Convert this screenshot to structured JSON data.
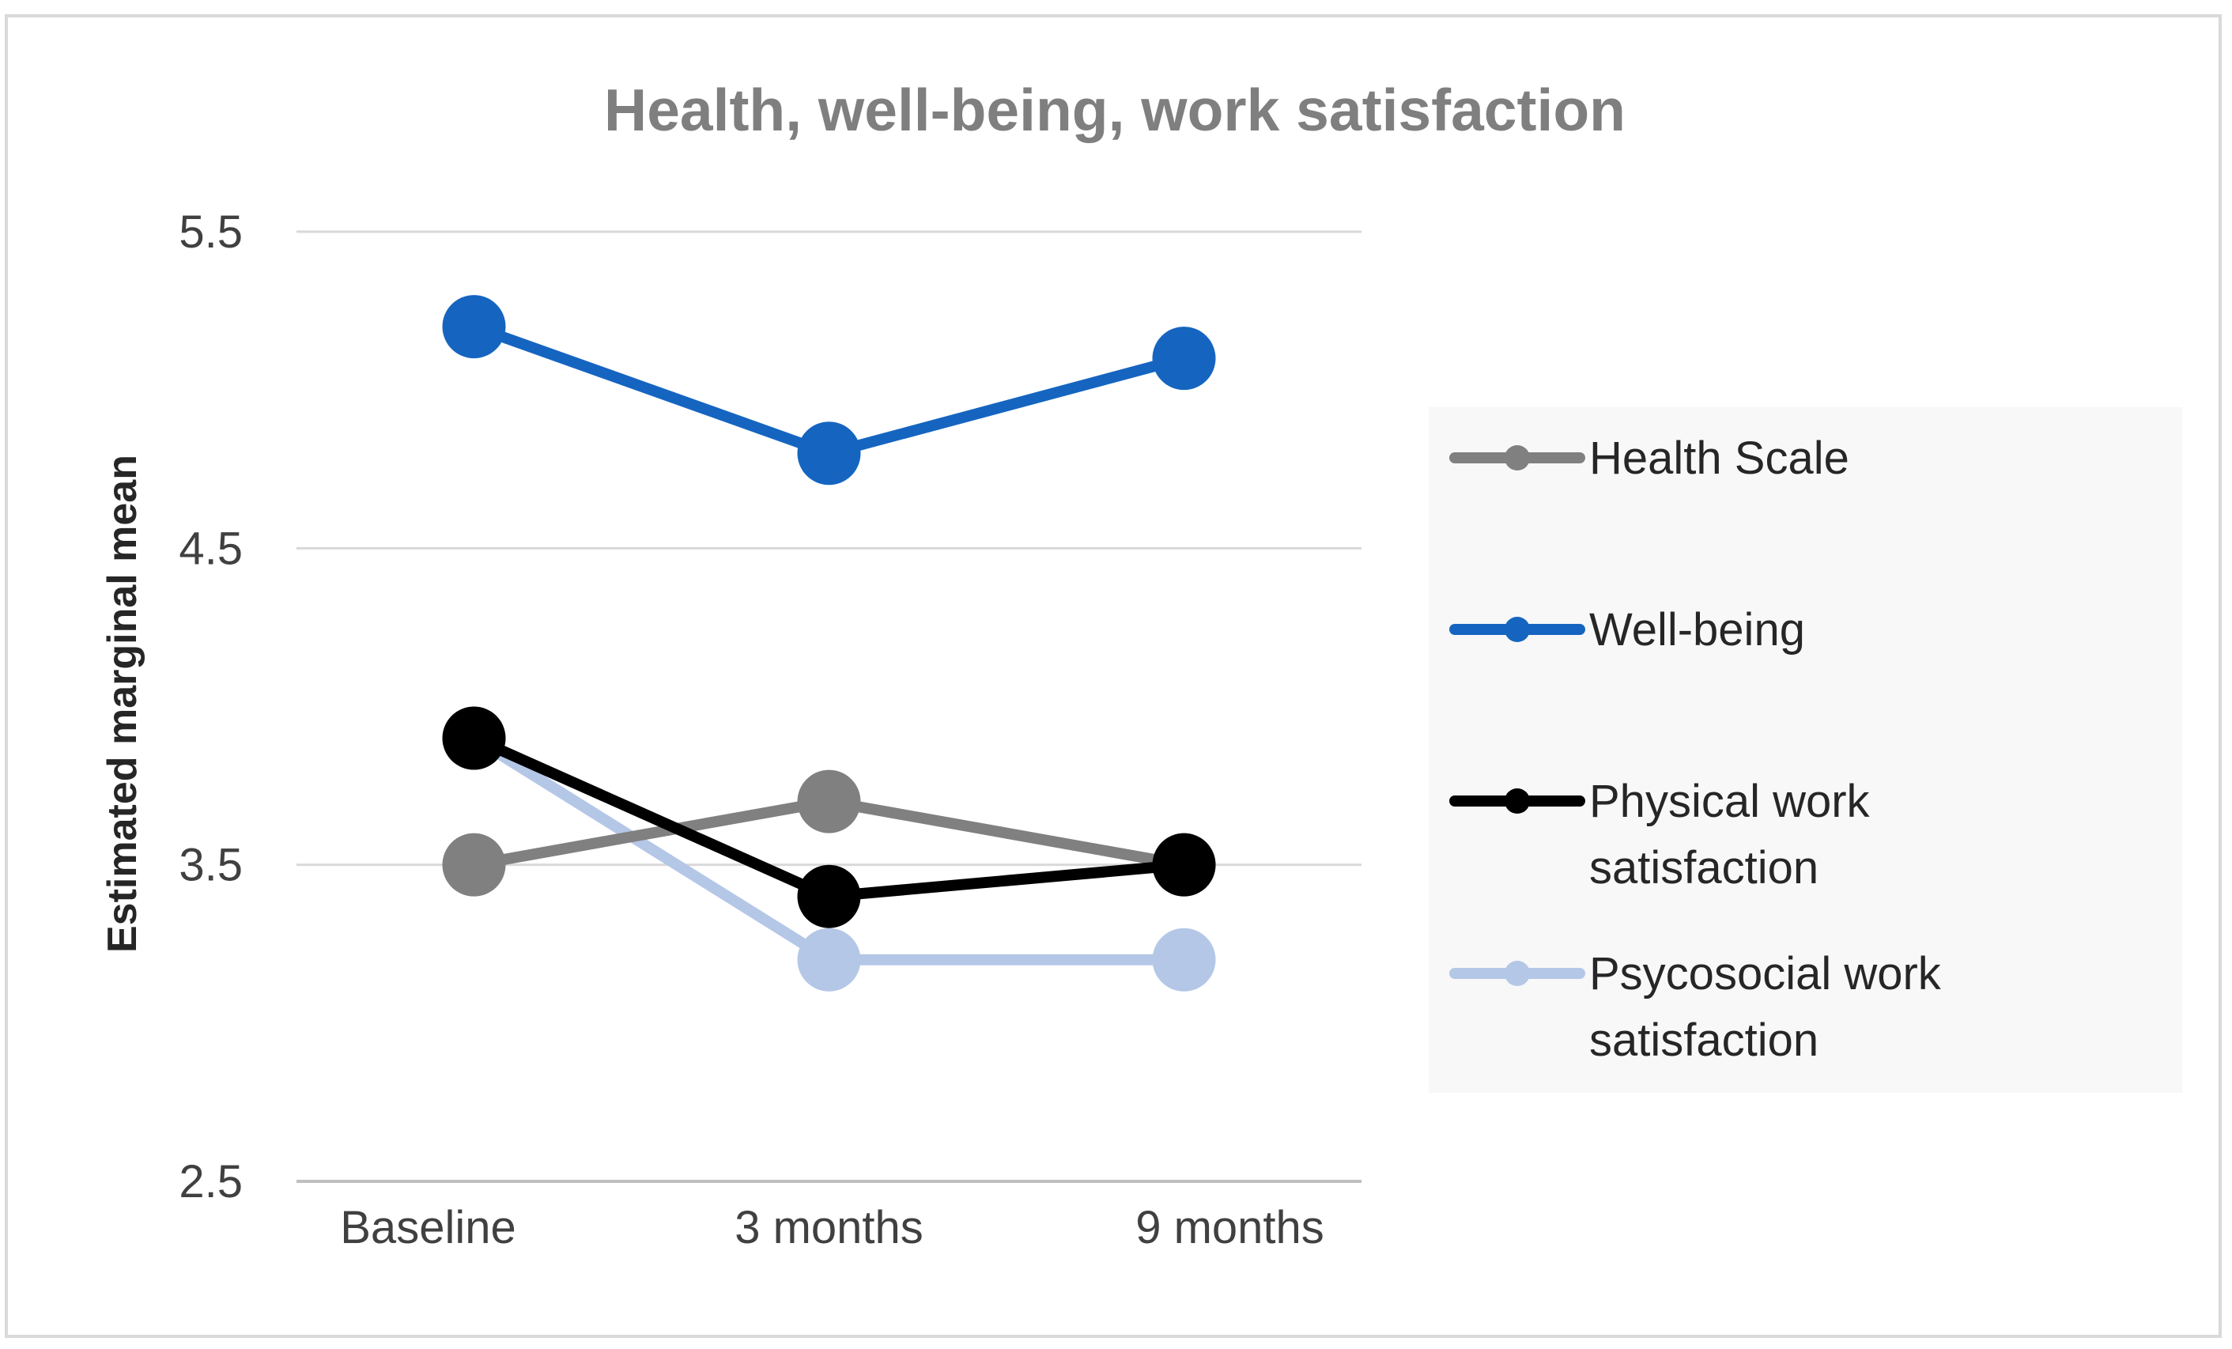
{
  "chart_data": {
    "type": "line",
    "title": "Health, well-being, work satisfaction",
    "xlabel": "",
    "ylabel": "Estimated marginal mean",
    "categories": [
      "Baseline",
      "3 months",
      "9 months"
    ],
    "ylim": [
      2.5,
      5.5
    ],
    "yticks": [
      2.5,
      3.5,
      4.5,
      5.5
    ],
    "ytick_labels": [
      "2.5",
      "3.5",
      "4.5",
      "5.5"
    ],
    "grid": true,
    "legend_position": "right",
    "series": [
      {
        "name": "Health Scale",
        "values": [
          3.5,
          3.7,
          3.5
        ],
        "color": "#808080"
      },
      {
        "name": "Well-being",
        "values": [
          5.2,
          4.8,
          5.1
        ],
        "color": "#1565c0"
      },
      {
        "name": "Physical work satisfaction",
        "values": [
          3.9,
          3.4,
          3.5
        ],
        "color": "#000000"
      },
      {
        "name": "Psycosocial work satisfaction",
        "values": [
          3.9,
          3.2,
          3.2
        ],
        "color": "#b4c7e7"
      }
    ]
  }
}
